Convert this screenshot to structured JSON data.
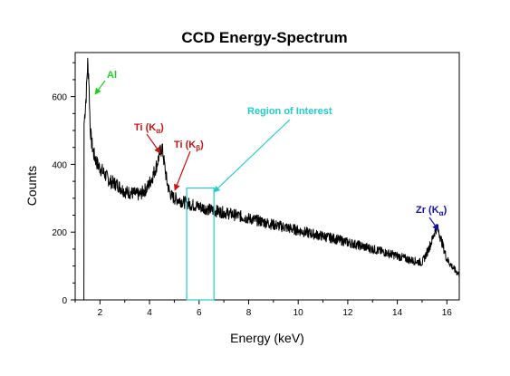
{
  "chart_data": {
    "type": "line",
    "title": "CCD Energy-Spectrum",
    "xlabel": "Energy (keV)",
    "ylabel": "Counts",
    "xlim": [
      1.0,
      16.5
    ],
    "ylim": [
      0,
      730
    ],
    "x_ticks": [
      2,
      4,
      6,
      8,
      10,
      12,
      14,
      16
    ],
    "y_ticks": [
      0,
      200,
      400,
      600
    ],
    "grid": false,
    "legend": "none",
    "line_color": "#000000",
    "series": [
      {
        "x": [
          1.35,
          1.36,
          1.4,
          1.45,
          1.5,
          1.55,
          1.6,
          1.65,
          1.7,
          1.75,
          1.8,
          1.9,
          2.0,
          2.2,
          2.4,
          2.7,
          3.0,
          3.3,
          3.6,
          3.9,
          4.1,
          4.3,
          4.4,
          4.5,
          4.55,
          4.6,
          4.7,
          4.8,
          4.9,
          5.0,
          5.2,
          5.5,
          6.0,
          6.5,
          7.0,
          7.5,
          8.0,
          8.5,
          9.0,
          9.5,
          10.0,
          10.5,
          11.0,
          11.5,
          12.0,
          12.5,
          13.0,
          13.5,
          14.0,
          14.5,
          15.0,
          15.2,
          15.4,
          15.5,
          15.6,
          15.7,
          15.8,
          15.9,
          16.0,
          16.1,
          16.2,
          16.3,
          16.4,
          16.5
        ],
        "y": [
          0,
          520,
          560,
          610,
          700,
          660,
          520,
          470,
          450,
          430,
          420,
          400,
          390,
          370,
          350,
          340,
          320,
          315,
          310,
          330,
          360,
          400,
          430,
          450,
          430,
          400,
          350,
          320,
          305,
          300,
          295,
          285,
          275,
          265,
          258,
          250,
          240,
          232,
          222,
          214,
          205,
          196,
          188,
          180,
          170,
          160,
          150,
          140,
          130,
          118,
          110,
          140,
          175,
          200,
          215,
          195,
          170,
          145,
          120,
          110,
          100,
          90,
          82,
          75
        ]
      }
    ]
  },
  "annotations": {
    "al": {
      "text": "Al",
      "color": "#22cc22"
    },
    "ti_ka": {
      "text": "Ti (K",
      "sub": "α",
      "tail": ")",
      "color": "#cc1111"
    },
    "ti_kb": {
      "text": "Ti (K",
      "sub": "β",
      "tail": ")",
      "color": "#cc1111"
    },
    "roi": {
      "text": "Region of Interest",
      "color": "#22cccc",
      "x_range": [
        5.5,
        6.6
      ],
      "y_top": 330
    },
    "zr_ka": {
      "text": "Zr (K",
      "sub": "α",
      "tail": ")",
      "color": "#1111aa"
    }
  }
}
